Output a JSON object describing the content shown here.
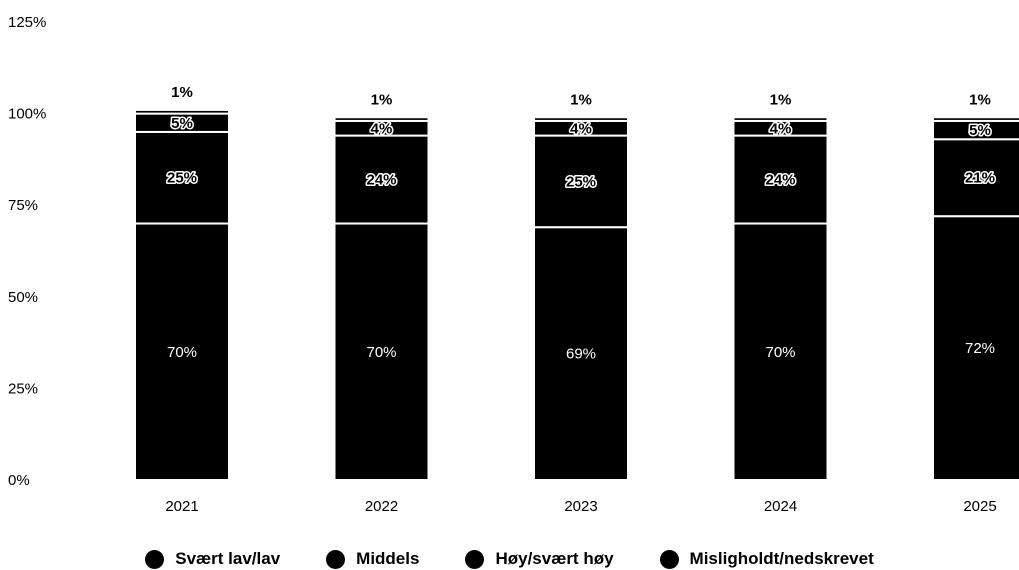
{
  "chart_data": {
    "type": "bar",
    "stacked": true,
    "categories": [
      "2021",
      "2022",
      "2023",
      "2024",
      "2025"
    ],
    "series": [
      {
        "name": "Svært lav/lav",
        "values": [
          70,
          70,
          69,
          70,
          72
        ],
        "labels": [
          "70%",
          "70%",
          "69%",
          "70%",
          "72%"
        ]
      },
      {
        "name": "Middels",
        "values": [
          25,
          24,
          25,
          24,
          21
        ],
        "labels": [
          "25%",
          "24%",
          "25%",
          "24%",
          "21%"
        ]
      },
      {
        "name": "Høy/svært høy",
        "values": [
          5,
          4,
          4,
          4,
          5
        ],
        "labels": [
          "5%",
          "4%",
          "4%",
          "4%",
          "5%"
        ]
      },
      {
        "name": "Misligholdt/nedskrevet",
        "values": [
          1,
          1,
          1,
          1,
          1
        ],
        "labels": [
          "1%",
          "1%",
          "1%",
          "1%",
          "1%"
        ]
      }
    ],
    "yticks": [
      "0%",
      "25%",
      "50%",
      "75%",
      "100%",
      "125%"
    ],
    "ylim": [
      0,
      125
    ],
    "xlabel": "",
    "ylabel": "",
    "title": "",
    "grid": false,
    "legend_position": "bottom",
    "bar_color": "#000000"
  }
}
